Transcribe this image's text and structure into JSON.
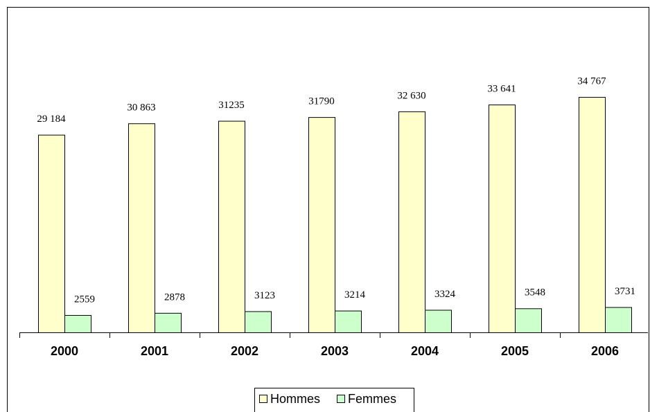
{
  "chart_data": {
    "type": "bar",
    "categories": [
      "2000",
      "2001",
      "2002",
      "2003",
      "2004",
      "2005",
      "2006"
    ],
    "series": [
      {
        "name": "Hommes",
        "color": "#ffffcc",
        "values": [
          29184,
          30863,
          31235,
          31790,
          32630,
          33641,
          34767
        ],
        "value_labels": [
          "29 184",
          "30 863",
          "31235",
          "31790",
          "32 630",
          "33 641",
          "34 767"
        ]
      },
      {
        "name": "Femmes",
        "color": "#ccffcc",
        "values": [
          2559,
          2878,
          3123,
          3214,
          3324,
          3548,
          3731
        ],
        "value_labels": [
          "2559",
          "2878",
          "3123",
          "3214",
          "3324",
          "3548",
          "3731"
        ]
      }
    ],
    "legend": "bottom"
  }
}
